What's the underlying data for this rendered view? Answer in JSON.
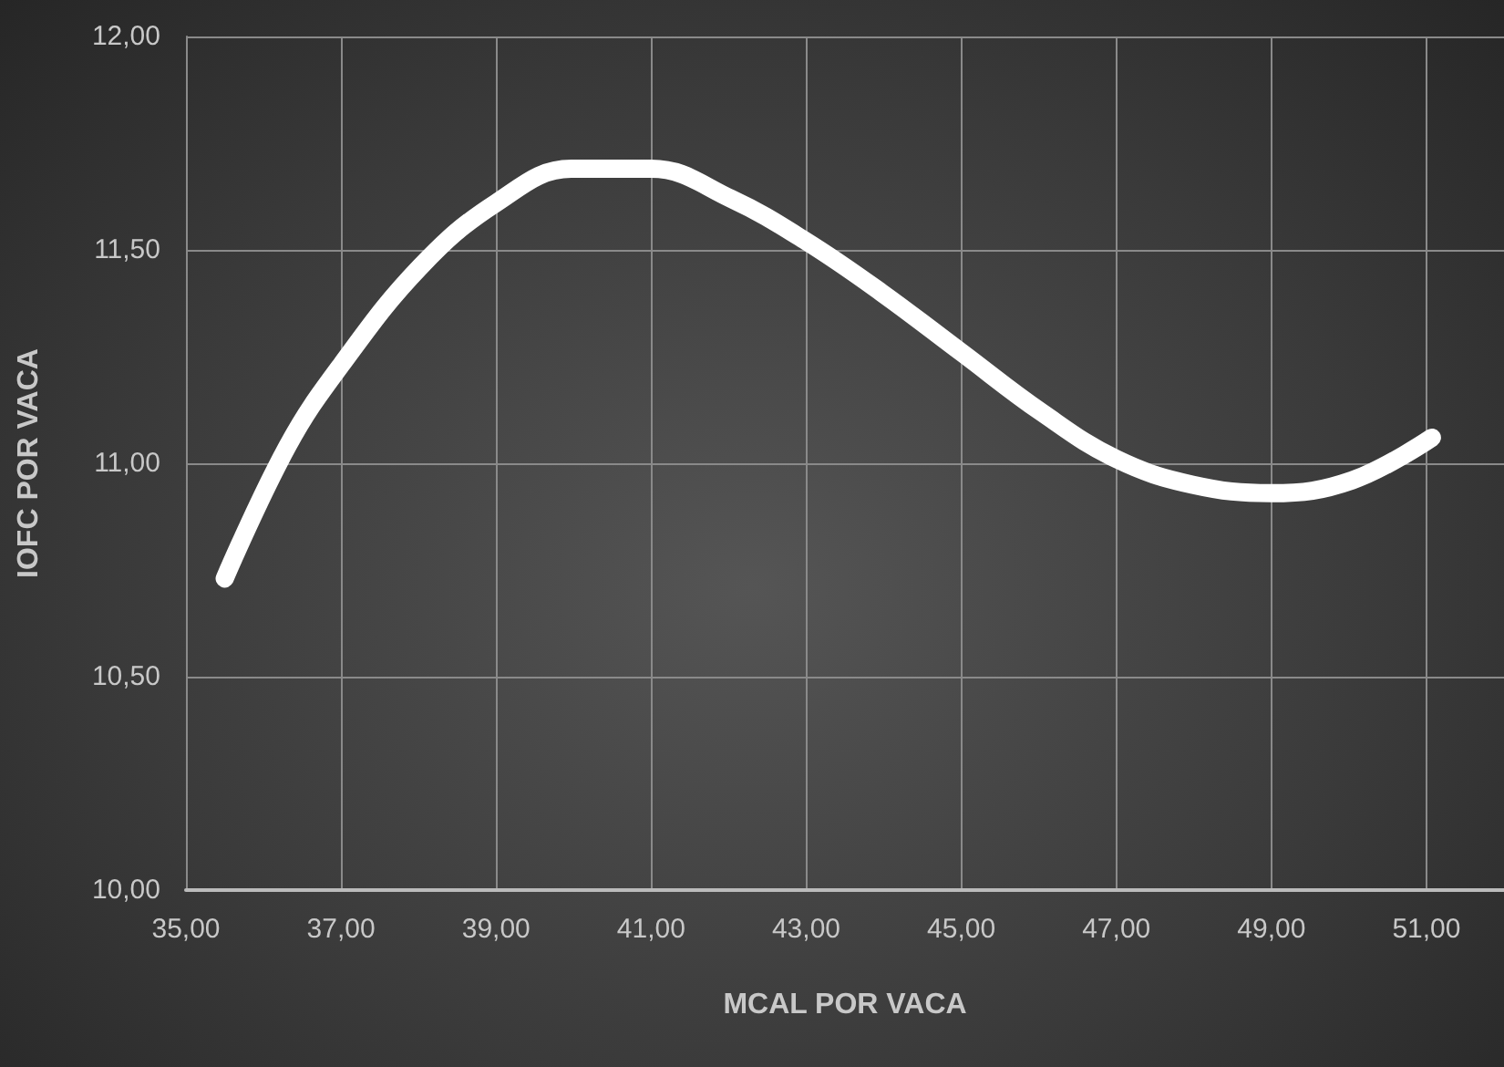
{
  "chart_data": {
    "type": "line",
    "xlabel": "MCAL POR VACA",
    "ylabel": "IOFC POR VACA",
    "x": [
      35.5,
      36.31,
      37.0,
      38.02,
      39.0,
      39.97,
      41.0,
      42.03,
      43.0,
      43.97,
      45.0,
      46.03,
      47.0,
      47.98,
      49.0,
      50.04,
      51.07
    ],
    "series": [
      {
        "color": "#ffffff",
        "values": [
          10.73,
          11.04,
          11.23,
          11.46,
          11.61,
          11.69,
          11.69,
          11.62,
          11.52,
          11.4,
          11.26,
          11.12,
          11.01,
          10.95,
          10.93,
          10.96,
          11.06
        ]
      }
    ],
    "xlim": [
      35,
      52
    ],
    "xticks": [
      {
        "value": 35,
        "label": "35,00"
      },
      {
        "value": 37,
        "label": "37,00"
      },
      {
        "value": 39,
        "label": "39,00"
      },
      {
        "value": 41,
        "label": "41,00"
      },
      {
        "value": 43,
        "label": "43,00"
      },
      {
        "value": 45,
        "label": "45,00"
      },
      {
        "value": 47,
        "label": "47,00"
      },
      {
        "value": 49,
        "label": "49,00"
      },
      {
        "value": 51,
        "label": "51,00"
      }
    ],
    "ylim": [
      10,
      12
    ],
    "yticks": [
      {
        "value": 10,
        "label": "10,00"
      },
      {
        "value": 10.5,
        "label": "10,50"
      },
      {
        "value": 11,
        "label": "11,00"
      },
      {
        "value": 11.5,
        "label": "11,50"
      },
      {
        "value": 12,
        "label": "12,00"
      }
    ],
    "grid": true,
    "line_style": "solid"
  }
}
